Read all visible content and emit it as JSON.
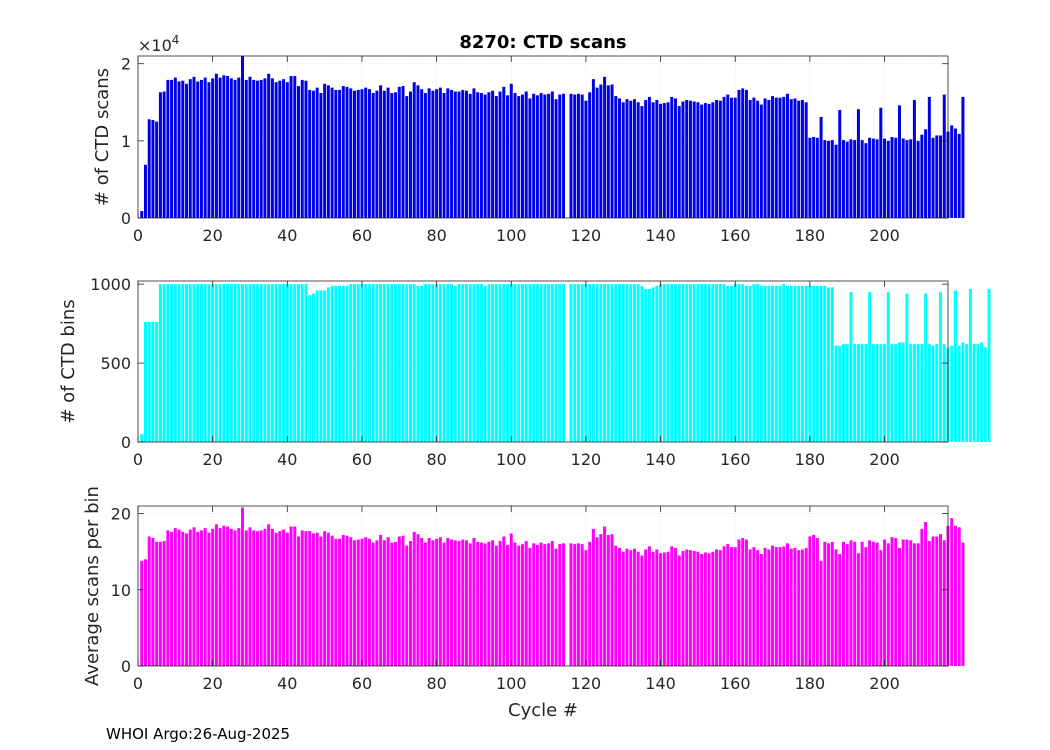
{
  "chart_data": [
    {
      "type": "bar",
      "title": "8270: CTD scans",
      "xlabel": "",
      "ylabel": "# of CTD scans",
      "xlim": [
        0,
        217
      ],
      "ylim": [
        0,
        2.1
      ],
      "yscale_label_base": "×10",
      "yscale_label_exp": "4",
      "xticks": [
        0,
        20,
        40,
        60,
        80,
        100,
        120,
        140,
        160,
        180,
        200
      ],
      "yticks": [
        0,
        1,
        2
      ],
      "color": "#0000e6",
      "start_cycle": 1,
      "values": [
        0.09,
        0.69,
        1.28,
        1.27,
        1.25,
        1.63,
        1.64,
        1.79,
        1.79,
        1.82,
        1.77,
        1.78,
        1.74,
        1.8,
        1.83,
        1.77,
        1.79,
        1.82,
        1.76,
        1.81,
        1.87,
        1.82,
        1.85,
        1.84,
        1.81,
        1.79,
        1.82,
        2.1,
        1.79,
        1.83,
        1.79,
        1.78,
        1.79,
        1.81,
        1.87,
        1.81,
        1.76,
        1.78,
        1.8,
        1.76,
        1.84,
        1.84,
        1.71,
        1.79,
        1.78,
        1.66,
        1.65,
        1.69,
        1.62,
        1.74,
        1.72,
        1.69,
        1.66,
        1.66,
        1.71,
        1.7,
        1.68,
        1.65,
        1.66,
        1.67,
        1.69,
        1.67,
        1.62,
        1.65,
        1.72,
        1.65,
        1.69,
        1.62,
        1.63,
        1.7,
        1.71,
        1.58,
        1.64,
        1.76,
        1.72,
        1.67,
        1.62,
        1.68,
        1.65,
        1.67,
        1.69,
        1.62,
        1.68,
        1.66,
        1.64,
        1.64,
        1.66,
        1.65,
        1.61,
        1.68,
        1.63,
        1.62,
        1.6,
        1.63,
        1.65,
        1.58,
        1.64,
        1.7,
        1.59,
        1.74,
        1.62,
        1.58,
        1.6,
        1.64,
        1.55,
        1.61,
        1.59,
        1.62,
        1.6,
        1.61,
        1.64,
        1.54,
        1.6,
        1.61,
        0.0,
        1.61,
        1.6,
        1.61,
        1.6,
        1.52,
        1.63,
        1.8,
        1.69,
        1.73,
        1.83,
        1.72,
        1.73,
        1.58,
        1.55,
        1.5,
        1.54,
        1.52,
        1.54,
        1.5,
        1.45,
        1.53,
        1.57,
        1.5,
        1.53,
        1.48,
        1.49,
        1.5,
        1.57,
        1.55,
        1.45,
        1.51,
        1.53,
        1.52,
        1.51,
        1.5,
        1.47,
        1.49,
        1.48,
        1.5,
        1.53,
        1.52,
        1.57,
        1.6,
        1.56,
        1.56,
        1.66,
        1.68,
        1.66,
        1.53,
        1.56,
        1.52,
        1.47,
        1.55,
        1.53,
        1.58,
        1.56,
        1.56,
        1.57,
        1.61,
        1.54,
        1.55,
        1.52,
        1.53,
        1.5,
        1.04,
        1.05,
        1.04,
        1.31,
        1.01,
        1.0,
        1.01,
        0.95,
        1.4,
        1.01,
        0.99,
        1.02,
        1.01,
        1.41,
        1.01,
        0.97,
        1.04,
        1.03,
        1.02,
        1.43,
        1.03,
        1.0,
        1.05,
        1.04,
        1.46,
        1.03,
        1.01,
        1.02,
        1.53,
        1.0,
        1.08,
        1.15,
        1.57,
        1.04,
        1.07,
        1.07,
        1.6,
        1.12,
        1.2,
        1.16,
        1.09,
        1.57
      ]
    },
    {
      "type": "bar",
      "title": "",
      "xlabel": "",
      "ylabel": "# of CTD bins",
      "xlim": [
        0,
        217
      ],
      "ylim": [
        0,
        1020
      ],
      "xticks": [
        0,
        20,
        40,
        60,
        80,
        100,
        120,
        140,
        160,
        180,
        200
      ],
      "yticks": [
        0,
        500,
        1000
      ],
      "color": "#00ffff",
      "start_cycle": 1,
      "values": [
        50,
        760,
        760,
        760,
        760,
        1000,
        1000,
        1000,
        1000,
        1000,
        1000,
        1000,
        1000,
        1000,
        1000,
        1000,
        1000,
        1000,
        1000,
        1000,
        1000,
        1000,
        1000,
        1000,
        1000,
        1000,
        1000,
        1000,
        1000,
        1000,
        1000,
        1000,
        1000,
        1000,
        1000,
        1000,
        1000,
        1000,
        1000,
        1000,
        1000,
        1000,
        1000,
        1000,
        1000,
        930,
        940,
        960,
        960,
        960,
        980,
        990,
        990,
        990,
        990,
        990,
        1000,
        1000,
        1000,
        1000,
        1000,
        1000,
        1000,
        1000,
        1000,
        1000,
        1000,
        1000,
        1000,
        1000,
        1000,
        1000,
        1000,
        1000,
        990,
        990,
        1000,
        1000,
        1000,
        1000,
        1000,
        1000,
        1000,
        1000,
        990,
        1000,
        1000,
        1000,
        1000,
        1000,
        1000,
        1000,
        990,
        1000,
        1000,
        1000,
        1000,
        1000,
        1000,
        1000,
        1000,
        1000,
        1000,
        1000,
        1000,
        1000,
        1000,
        1000,
        1000,
        1000,
        1000,
        1000,
        1000,
        1000,
        0,
        1000,
        1000,
        1000,
        1000,
        1000,
        1000,
        1000,
        1000,
        1000,
        1000,
        1000,
        1000,
        1000,
        1000,
        1000,
        1000,
        1000,
        1000,
        1000,
        990,
        970,
        970,
        980,
        990,
        1000,
        1000,
        1000,
        1000,
        1000,
        1000,
        1000,
        1000,
        1000,
        1000,
        1000,
        1000,
        1000,
        1000,
        1000,
        1000,
        1000,
        1000,
        990,
        990,
        1000,
        1000,
        1000,
        990,
        990,
        1000,
        1000,
        990,
        990,
        990,
        990,
        990,
        990,
        1000,
        990,
        990,
        990,
        990,
        990,
        990,
        990,
        990,
        990,
        990,
        990,
        980,
        980,
        610,
        610,
        620,
        620,
        950,
        620,
        620,
        620,
        620,
        950,
        620,
        620,
        620,
        620,
        950,
        620,
        620,
        630,
        630,
        940,
        620,
        620,
        620,
        620,
        940,
        620,
        610,
        620,
        950,
        620,
        600,
        610,
        960,
        610,
        630,
        620,
        970,
        620,
        620,
        630,
        600,
        970
      ]
    },
    {
      "type": "bar",
      "title": "",
      "xlabel": "Cycle #",
      "ylabel": "Average scans per bin",
      "xlim": [
        0,
        217
      ],
      "ylim": [
        0,
        21
      ],
      "xticks": [
        0,
        20,
        40,
        60,
        80,
        100,
        120,
        140,
        160,
        180,
        200
      ],
      "yticks": [
        0,
        10,
        20
      ],
      "color": "#ff00ff",
      "start_cycle": 1,
      "values": [
        13.8,
        14.0,
        17.0,
        16.8,
        16.3,
        16.3,
        16.4,
        17.8,
        17.6,
        18.1,
        17.9,
        17.6,
        17.4,
        17.9,
        18.2,
        17.6,
        17.8,
        18.1,
        17.5,
        18.0,
        18.6,
        18.1,
        18.4,
        18.3,
        18.0,
        17.8,
        18.1,
        20.8,
        17.8,
        18.2,
        17.8,
        17.7,
        17.8,
        18.0,
        18.6,
        18.0,
        17.5,
        17.7,
        17.9,
        17.5,
        18.3,
        18.3,
        17.0,
        17.8,
        17.7,
        17.7,
        17.4,
        17.5,
        17.0,
        17.7,
        17.5,
        17.1,
        16.7,
        16.7,
        17.2,
        17.1,
        16.9,
        16.5,
        16.6,
        16.7,
        16.9,
        16.7,
        16.2,
        16.5,
        17.2,
        16.5,
        16.9,
        16.2,
        16.3,
        17.0,
        17.1,
        15.8,
        16.4,
        17.6,
        17.3,
        16.8,
        16.2,
        16.8,
        16.5,
        16.7,
        16.9,
        16.2,
        16.8,
        16.6,
        16.5,
        16.4,
        16.6,
        16.5,
        16.1,
        16.8,
        16.3,
        16.2,
        16.1,
        16.3,
        16.5,
        15.8,
        16.4,
        17.0,
        15.9,
        17.4,
        16.2,
        15.8,
        16.0,
        16.4,
        15.5,
        16.1,
        15.9,
        16.2,
        16.0,
        16.1,
        16.4,
        15.4,
        16.0,
        16.1,
        0.0,
        16.1,
        16.0,
        16.1,
        16.0,
        15.2,
        16.3,
        18.0,
        16.9,
        17.3,
        18.3,
        17.2,
        17.3,
        15.8,
        15.5,
        15.0,
        15.4,
        15.2,
        15.4,
        15.0,
        14.5,
        15.3,
        15.7,
        15.0,
        15.3,
        14.8,
        14.9,
        15.0,
        15.7,
        15.5,
        14.5,
        15.1,
        15.3,
        15.2,
        15.1,
        15.0,
        14.7,
        14.9,
        14.8,
        15.0,
        15.3,
        15.2,
        15.7,
        16.0,
        15.6,
        15.6,
        16.6,
        16.8,
        16.6,
        15.3,
        15.6,
        15.2,
        14.7,
        15.5,
        15.3,
        15.8,
        15.6,
        15.6,
        15.7,
        16.1,
        15.4,
        15.5,
        15.2,
        15.3,
        15.5,
        17.0,
        17.2,
        16.8,
        13.8,
        16.3,
        16.1,
        16.3,
        15.3,
        14.7,
        16.3,
        16.0,
        16.5,
        16.3,
        14.8,
        16.3,
        15.6,
        16.5,
        16.3,
        16.2,
        15.2,
        16.6,
        16.1,
        16.9,
        16.8,
        15.5,
        16.6,
        16.6,
        16.5,
        16.1,
        16.1,
        18.0,
        18.9,
        16.4,
        17.0,
        17.0,
        17.3,
        16.5,
        18.4,
        19.4,
        18.4,
        18.2,
        16.2
      ]
    }
  ],
  "footer": "WHOI Argo:26-Aug-2025"
}
